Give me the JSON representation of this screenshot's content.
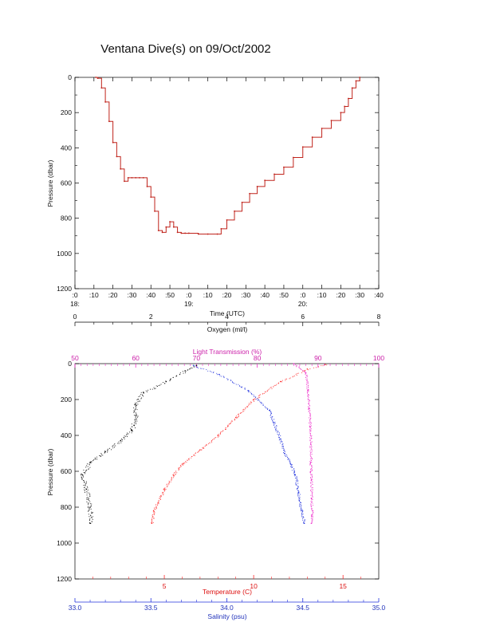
{
  "title": "Ventana Dive(s) on 09/Oct/2002",
  "colors": {
    "trace": "#c0241c",
    "oxygen": "#000000",
    "light": "#ee33cc",
    "temperature": "#ff2a2a",
    "salinity": "#2233dd"
  },
  "chart_data": [
    {
      "type": "line",
      "title": "Ventana Dive(s) on 09/Oct/2002",
      "xlabel": "Time (UTC)",
      "ylabel": "Pressure (dbar)",
      "xlim": [
        "18:00",
        "20:40"
      ],
      "ylim": [
        1200,
        0
      ],
      "x_ticks": [
        ":0",
        ":10",
        ":20",
        ":30",
        ":40",
        ":50",
        ":0",
        ":10",
        ":20",
        ":30",
        ":40",
        ":50",
        ":0",
        ":10",
        ":20",
        ":30",
        ":40"
      ],
      "hour_labels": [
        "18:",
        "19:",
        "20:"
      ],
      "y_ticks": [
        "0",
        "200",
        "400",
        "600",
        "800",
        "1000",
        "1200"
      ],
      "series": [
        {
          "x": [
            "18:11",
            "18:12",
            "18:14",
            "18:16",
            "18:18",
            "18:20",
            "18:22",
            "18:24",
            "18:26",
            "18:28",
            "18:30",
            "18:32",
            "18:34",
            "18:36",
            "18:38",
            "18:40",
            "18:42",
            "18:44",
            "18:46",
            "18:48",
            "18:50",
            "18:52",
            "18:54",
            "18:56",
            "18:58",
            "19:00",
            "19:05",
            "19:10",
            "19:15",
            "19:17",
            "19:20",
            "19:24",
            "19:28",
            "19:32",
            "19:36",
            "19:40",
            "19:45",
            "19:50",
            "19:55",
            "20:00",
            "20:05",
            "20:10",
            "20:15",
            "20:20",
            "20:22",
            "20:24",
            "20:26",
            "20:28",
            "20:30"
          ],
          "y": [
            0,
            5,
            60,
            140,
            250,
            370,
            450,
            520,
            590,
            570,
            570,
            570,
            570,
            570,
            620,
            680,
            760,
            870,
            880,
            850,
            820,
            850,
            880,
            885,
            885,
            885,
            890,
            890,
            890,
            860,
            810,
            760,
            710,
            660,
            620,
            585,
            550,
            510,
            455,
            395,
            340,
            290,
            245,
            200,
            165,
            120,
            60,
            20,
            0
          ]
        }
      ]
    },
    {
      "type": "scatter",
      "ylabel": "Pressure (dbar)",
      "ylim": [
        1200,
        0
      ],
      "y_ticks": [
        "0",
        "200",
        "400",
        "600",
        "800",
        "1000",
        "1200"
      ],
      "axes": [
        {
          "label": "Oxygen (ml/l)",
          "position": "top",
          "range": [
            0,
            8
          ],
          "ticks": [
            "0",
            "2",
            "4",
            "6",
            "8"
          ]
        },
        {
          "label": "Light Transmission (%)",
          "position": "top",
          "range": [
            50,
            100
          ],
          "ticks": [
            "50",
            "60",
            "70",
            "80",
            "90",
            "100"
          ]
        },
        {
          "label": "Temperature (C)",
          "position": "bottom",
          "range": [
            0,
            17
          ],
          "ticks": [
            "5",
            "10",
            "15"
          ]
        },
        {
          "label": "Salinity (psu)",
          "position": "bottom",
          "range": [
            33.0,
            35.0
          ],
          "ticks": [
            "33.0",
            "33.5",
            "34.0",
            "34.5",
            "35.0"
          ]
        }
      ],
      "series": [
        {
          "name": "Oxygen (ml/l)",
          "x": [
            3.2,
            2.9,
            2.4,
            1.8,
            1.6,
            1.6,
            1.5,
            1.2,
            0.8,
            0.4,
            0.2,
            0.3,
            0.4,
            0.4
          ],
          "y": [
            10,
            40,
            100,
            160,
            230,
            290,
            370,
            430,
            490,
            550,
            620,
            700,
            800,
            890
          ]
        },
        {
          "name": "Light Transmission (%)",
          "x": [
            86,
            88,
            88.3,
            88.5,
            88.7,
            88.8,
            88.8,
            88.8,
            88.9,
            88.9,
            89.0,
            88.9
          ],
          "y": [
            0,
            50,
            150,
            250,
            350,
            450,
            550,
            600,
            650,
            750,
            850,
            890
          ]
        },
        {
          "name": "Temperature (C)",
          "x": [
            14.0,
            13.0,
            11.5,
            10.0,
            9.0,
            8.0,
            7.0,
            6.0,
            5.5,
            5.0,
            4.4,
            4.3
          ],
          "y": [
            5,
            30,
            100,
            200,
            300,
            400,
            480,
            560,
            620,
            700,
            820,
            890
          ]
        },
        {
          "name": "Salinity (psu)",
          "x": [
            33.78,
            33.95,
            34.14,
            34.28,
            34.31,
            34.35,
            34.38,
            34.42,
            34.45,
            34.47,
            34.49,
            34.51
          ],
          "y": [
            10,
            60,
            150,
            260,
            330,
            420,
            500,
            560,
            620,
            720,
            820,
            890
          ]
        }
      ]
    }
  ]
}
